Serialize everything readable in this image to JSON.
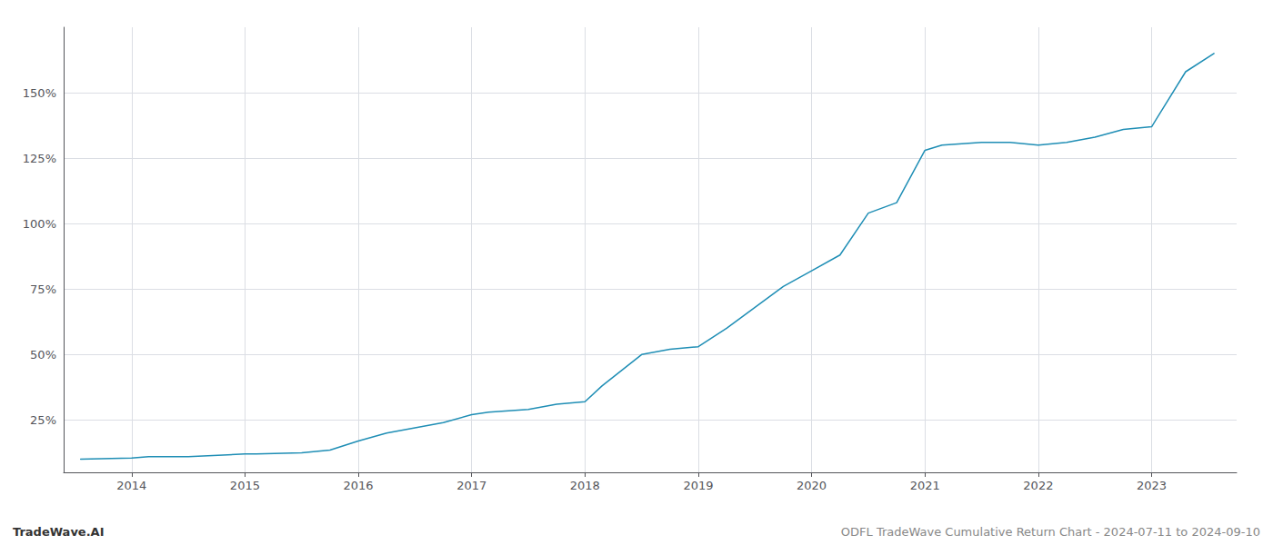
{
  "chart_data": {
    "type": "line",
    "title": "ODFL TradeWave Cumulative Return Chart - 2024-07-11 to 2024-09-10",
    "annotations": [
      "TradeWave.AI"
    ],
    "x": [
      2013.55,
      2014.0,
      2014.15,
      2014.5,
      2015.0,
      2015.1,
      2015.5,
      2015.75,
      2016.0,
      2016.25,
      2016.5,
      2016.75,
      2017.0,
      2017.15,
      2017.5,
      2017.75,
      2018.0,
      2018.15,
      2018.5,
      2018.75,
      2019.0,
      2019.25,
      2019.5,
      2019.75,
      2020.0,
      2020.25,
      2020.5,
      2020.75,
      2021.0,
      2021.15,
      2021.5,
      2021.75,
      2022.0,
      2022.25,
      2022.5,
      2022.75,
      2023.0,
      2023.3,
      2023.55
    ],
    "values": [
      10,
      10.5,
      11,
      11,
      12,
      12,
      12.5,
      13.5,
      17,
      20,
      22,
      24,
      27,
      28,
      29,
      31,
      32,
      38,
      50,
      52,
      53,
      60,
      68,
      76,
      82,
      88,
      104,
      108,
      128,
      130,
      131,
      131,
      130,
      131,
      133,
      136,
      137,
      158,
      165
    ],
    "color": "#1f8eb5",
    "xlim": [
      2013.4,
      2023.75
    ],
    "xticks": [
      2014,
      2015,
      2016,
      2017,
      2018,
      2019,
      2020,
      2021,
      2022,
      2023
    ],
    "ylim": [
      5,
      175
    ],
    "yticks": [
      {
        "value": 25,
        "label": "25%"
      },
      {
        "value": 50,
        "label": "50%"
      },
      {
        "value": 75,
        "label": "75%"
      },
      {
        "value": 100,
        "label": "100%"
      },
      {
        "value": 125,
        "label": "125%"
      },
      {
        "value": 150,
        "label": "150%"
      }
    ],
    "grid": true
  }
}
